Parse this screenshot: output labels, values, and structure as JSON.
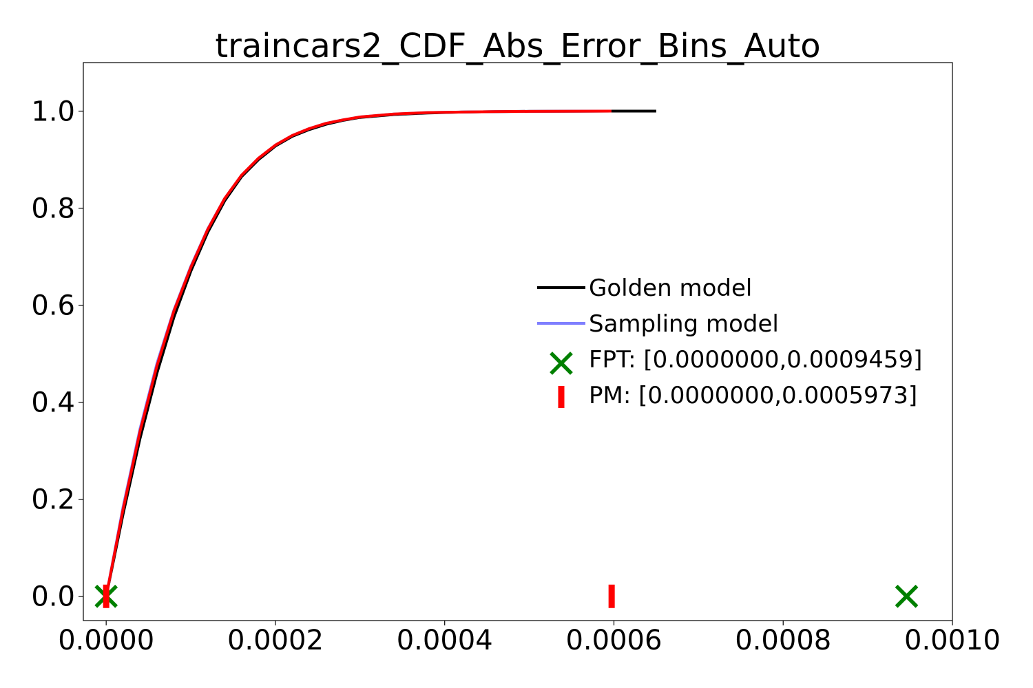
{
  "chart_data": {
    "type": "line",
    "title": "traincars2_CDF_Abs_Error_Bins_Auto",
    "xlabel": "",
    "ylabel": "",
    "xlim": [
      -2.7e-05,
      0.001
    ],
    "ylim": [
      -0.05,
      1.1
    ],
    "grid": false,
    "legend_placement": "center-right",
    "x_ticks": [
      0.0,
      0.0002,
      0.0004,
      0.0006,
      0.0008,
      0.001
    ],
    "x_tick_labels": [
      "0.0000",
      "0.0002",
      "0.0004",
      "0.0006",
      "0.0008",
      "0.0010"
    ],
    "y_ticks": [
      0.0,
      0.2,
      0.4,
      0.6,
      0.8,
      1.0
    ],
    "y_tick_labels": [
      "0.0",
      "0.2",
      "0.4",
      "0.6",
      "0.8",
      "1.0"
    ],
    "series": [
      {
        "name": "Golden model",
        "color": "#000000",
        "x": [
          0.0,
          2e-05,
          4e-05,
          6e-05,
          8e-05,
          0.0001,
          0.00012,
          0.00014,
          0.00016,
          0.00018,
          0.0002,
          0.00022,
          0.00024,
          0.00026,
          0.00028,
          0.0003,
          0.00034,
          0.00038,
          0.00042,
          0.00046,
          0.0005,
          0.0006,
          0.00065
        ],
        "y": [
          0.0,
          0.17,
          0.325,
          0.46,
          0.575,
          0.67,
          0.75,
          0.815,
          0.865,
          0.9,
          0.928,
          0.948,
          0.962,
          0.973,
          0.981,
          0.987,
          0.993,
          0.996,
          0.998,
          0.999,
          0.9995,
          1.0,
          1.0
        ]
      },
      {
        "name": "Sampling model",
        "color": "#7f7fff",
        "x": [
          0.0,
          2e-05,
          4e-05,
          6e-05,
          8e-05,
          0.0001,
          0.00012,
          0.00014,
          0.00016,
          0.00018,
          0.0002,
          0.00022,
          0.00024,
          0.00026,
          0.00028,
          0.0003,
          0.00034,
          0.00038,
          0.00042,
          0.00046,
          0.0005,
          0.000597
        ],
        "y": [
          0.0,
          0.185,
          0.345,
          0.48,
          0.59,
          0.68,
          0.757,
          0.82,
          0.868,
          0.903,
          0.93,
          0.95,
          0.964,
          0.975,
          0.982,
          0.988,
          0.994,
          0.997,
          0.998,
          0.999,
          0.9995,
          1.0
        ]
      },
      {
        "name": "",
        "color": "#ff0000",
        "x": [
          0.0,
          2e-05,
          4e-05,
          6e-05,
          8e-05,
          0.0001,
          0.00012,
          0.00014,
          0.00016,
          0.00018,
          0.0002,
          0.00022,
          0.00024,
          0.00026,
          0.00028,
          0.0003,
          0.00034,
          0.00038,
          0.00042,
          0.00046,
          0.0005,
          0.000597
        ],
        "y": [
          0.0,
          0.18,
          0.34,
          0.475,
          0.588,
          0.678,
          0.756,
          0.82,
          0.868,
          0.903,
          0.93,
          0.95,
          0.964,
          0.975,
          0.982,
          0.988,
          0.994,
          0.997,
          0.998,
          0.999,
          0.9995,
          1.0
        ]
      }
    ],
    "markers": [
      {
        "name": "FPT: [0.0000000,0.0009459]",
        "shape": "X",
        "color": "#008000",
        "points": [
          [
            0.0,
            0.0
          ],
          [
            0.0009459,
            0.0
          ]
        ]
      },
      {
        "name": "PM: [0.0000000,0.0005973]",
        "shape": "|",
        "color": "#ff0000",
        "points": [
          [
            0.0,
            0.0
          ],
          [
            0.0005973,
            0.0
          ]
        ]
      }
    ],
    "legend": [
      {
        "label": "Golden model",
        "kind": "line",
        "color": "#000000"
      },
      {
        "label": "Sampling model",
        "kind": "line",
        "color": "#7f7fff"
      },
      {
        "label": "FPT: [0.0000000,0.0009459]",
        "kind": "X",
        "color": "#008000"
      },
      {
        "label": "PM: [0.0000000,0.0005973]",
        "kind": "|",
        "color": "#ff0000"
      }
    ]
  }
}
